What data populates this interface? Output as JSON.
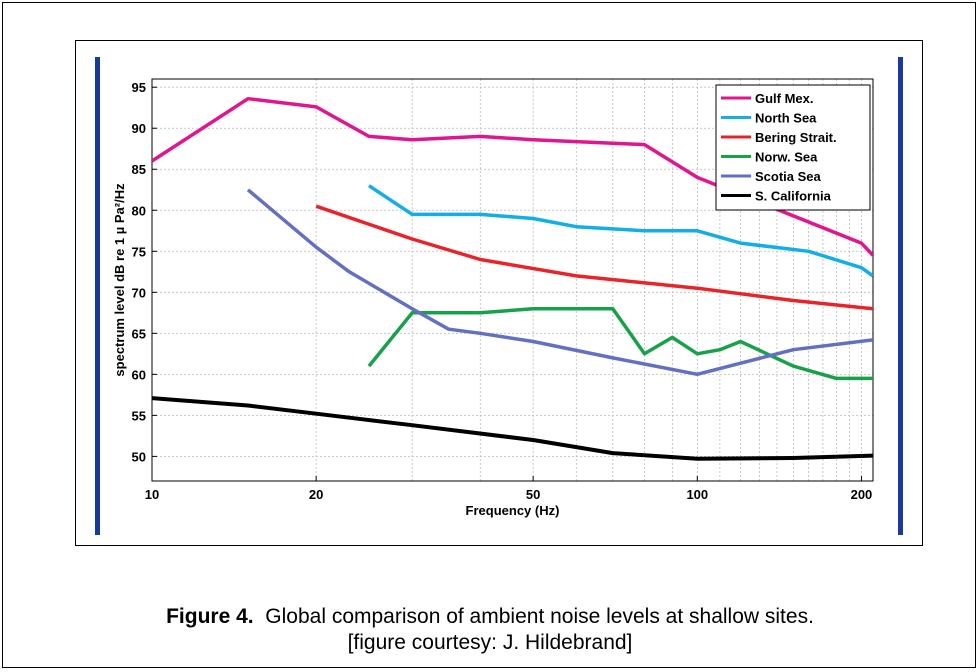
{
  "chart_data": {
    "type": "line",
    "title": "",
    "xlabel": "Frequency (Hz)",
    "ylabel": "spectrum level dB re 1 µ Pa²/Hz",
    "xscale": "log",
    "xlim": [
      10,
      210
    ],
    "ylim": [
      47,
      96
    ],
    "x_ticks": [
      10,
      20,
      50,
      100,
      200
    ],
    "y_ticks": [
      50,
      55,
      60,
      65,
      70,
      75,
      80,
      85,
      90,
      95
    ],
    "grid": true,
    "legend_position": "top-right",
    "series": [
      {
        "name": "Gulf Mex.",
        "color": "#e0168f",
        "x": [
          10,
          15,
          20,
          25,
          30,
          40,
          50,
          80,
          100,
          200,
          210
        ],
        "y": [
          86,
          93.6,
          92.6,
          89,
          88.6,
          89,
          88.6,
          88,
          84,
          76,
          74.5
        ]
      },
      {
        "name": "North Sea",
        "color": "#12aee8",
        "x": [
          25,
          30,
          40,
          50,
          60,
          80,
          100,
          120,
          160,
          200,
          210
        ],
        "y": [
          83,
          79.5,
          79.5,
          79,
          78,
          77.5,
          77.5,
          76,
          75,
          73,
          72
        ]
      },
      {
        "name": "Bering Strait.",
        "color": "#e8242a",
        "x": [
          20,
          30,
          40,
          60,
          100,
          150,
          210
        ],
        "y": [
          80.5,
          76.5,
          74,
          72,
          70.5,
          69,
          68
        ]
      },
      {
        "name": "Norw. Sea",
        "color": "#17a14a",
        "x": [
          25,
          30,
          40,
          50,
          70,
          80,
          90,
          100,
          110,
          120,
          150,
          180,
          210
        ],
        "y": [
          61,
          67.5,
          67.5,
          68,
          68,
          62.5,
          64.5,
          62.5,
          63,
          64,
          61,
          59.5,
          59.5
        ]
      },
      {
        "name": "Scotia Sea",
        "color": "#6370c2",
        "x": [
          15,
          20,
          23,
          30,
          35,
          40,
          50,
          70,
          100,
          150,
          210
        ],
        "y": [
          82.5,
          75.5,
          72.5,
          68,
          65.5,
          65,
          64,
          62,
          60,
          63,
          64.2
        ]
      },
      {
        "name": "S. California",
        "color": "#000000",
        "x": [
          10,
          15,
          20,
          30,
          50,
          70,
          100,
          150,
          210
        ],
        "y": [
          57.1,
          56.2,
          55.2,
          53.8,
          52,
          50.4,
          49.7,
          49.8,
          50.1
        ]
      }
    ]
  },
  "caption": {
    "lead": "Figure 4.",
    "text": "  Global comparison of ambient noise levels at shallow sites.",
    "credit": "[figure courtesy: J. Hildebrand]"
  }
}
